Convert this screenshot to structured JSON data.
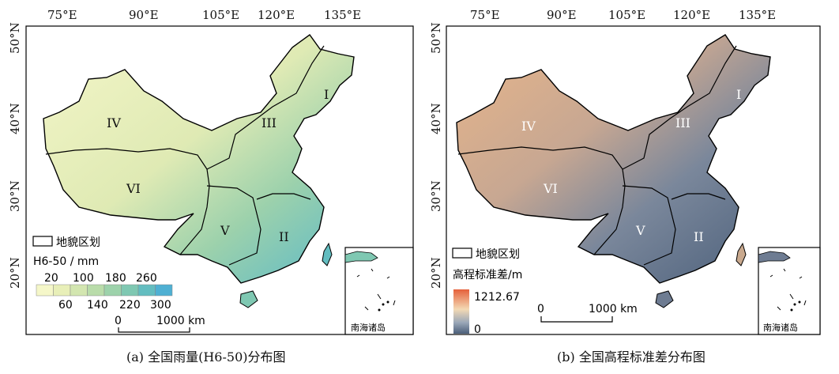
{
  "panels": [
    {
      "caption": "(a) 全国雨量(H6-50)分布图",
      "lon_ticks": [
        "75°E",
        "90°E",
        "105°E",
        "120°E",
        "135°E"
      ],
      "lat_ticks": [
        "50°N",
        "40°N",
        "30°N",
        "20°N"
      ],
      "regions": [
        "I",
        "II",
        "III",
        "IV",
        "V",
        "VI"
      ],
      "legend_boundary": "地貌区划",
      "legend_title": "H6-50 / mm",
      "legend_ticks_top": [
        "20",
        "100",
        "180",
        "260"
      ],
      "legend_ticks_bottom": [
        "60",
        "140",
        "220",
        "300"
      ],
      "scale_zero": "0",
      "scale_label": "1000 km",
      "inset_label": "南海诸岛",
      "colors": [
        "#f5f7c9",
        "#e8efb8",
        "#d3e6b0",
        "#b9dcaa",
        "#9dd2ab",
        "#7fc8b2",
        "#63bdc0",
        "#4fb0d3"
      ]
    },
    {
      "caption": "(b) 全国高程标准差分布图",
      "lon_ticks": [
        "75°E",
        "90°E",
        "105°E",
        "120°E",
        "135°E"
      ],
      "lat_ticks": [
        "50°N",
        "40°N",
        "30°N",
        "20°N"
      ],
      "regions": [
        "I",
        "II",
        "III",
        "IV",
        "V",
        "VI"
      ],
      "legend_boundary": "地貌区划",
      "legend_title": "高程标准差/m",
      "legend_max": "1212.67",
      "legend_min": "0",
      "scale_zero": "0",
      "scale_label": "1000 km",
      "inset_label": "南海诸岛",
      "colors": [
        "#e5603a",
        "#f3d9b4",
        "#9aa7b8",
        "#4b5f7a"
      ]
    }
  ]
}
